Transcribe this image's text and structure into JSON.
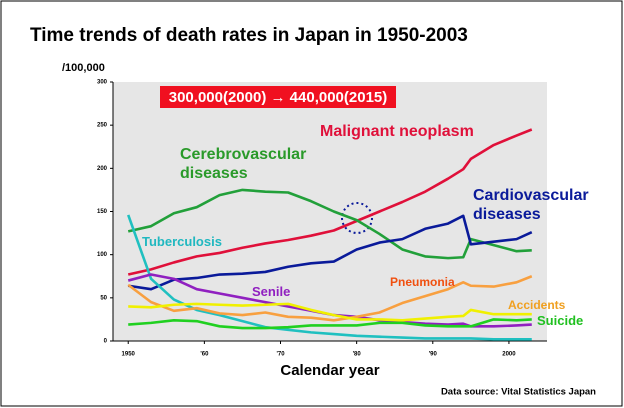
{
  "chart_data": {
    "type": "line",
    "title": "Time trends of death rates in Japan in 1950-2003",
    "ylabel": "/100,000",
    "xlabel": "Calendar year",
    "source": "Data source: Vital Statistics Japan",
    "annotation": "300,000(2000) → 440,000(2015)",
    "x": [
      1950,
      1953,
      1956,
      1959,
      1962,
      1965,
      1968,
      1971,
      1974,
      1977,
      1980,
      1983,
      1986,
      1989,
      1992,
      1994,
      1995,
      1998,
      2001,
      2003
    ],
    "xlim": [
      1948,
      2005
    ],
    "xticks": [
      1950,
      {
        "value": 1960,
        "label": "'60"
      },
      {
        "value": 1970,
        "label": "'70"
      },
      {
        "value": 1980,
        "label": "'80"
      },
      {
        "value": 1990,
        "label": "'90"
      },
      2000
    ],
    "ylim": [
      0,
      300
    ],
    "yticks": [
      0,
      50,
      100,
      150,
      200,
      250,
      300
    ],
    "series": [
      {
        "name": "Malignant neoplasm",
        "color": "#e0103a",
        "values": [
          77,
          83,
          91,
          98,
          102,
          108,
          113,
          117,
          122,
          128,
          139,
          150,
          161,
          173,
          188,
          199,
          211,
          227,
          238,
          245
        ]
      },
      {
        "name": "Cerebrovascular diseases",
        "color": "#22a03a",
        "values": [
          127,
          133,
          148,
          155,
          169,
          175,
          173,
          172,
          162,
          150,
          140,
          124,
          106,
          98,
          96,
          97,
          118,
          111,
          104,
          105
        ]
      },
      {
        "name": "Cardiovascular diseases",
        "color": "#0a1a9a",
        "values": [
          64,
          60,
          71,
          73,
          77,
          78,
          80,
          86,
          90,
          92,
          106,
          114,
          118,
          130,
          136,
          145,
          112,
          115,
          118,
          126
        ]
      },
      {
        "name": "Tuberculosis",
        "color": "#20c0c0",
        "values": [
          146,
          72,
          48,
          36,
          30,
          23,
          16,
          13,
          10,
          8,
          6,
          5,
          4,
          3,
          3,
          3,
          3,
          2,
          2,
          2
        ]
      },
      {
        "name": "Senile",
        "color": "#9020c0",
        "values": [
          70,
          77,
          72,
          60,
          55,
          50,
          45,
          40,
          35,
          30,
          28,
          24,
          22,
          20,
          19,
          20,
          17,
          17,
          18,
          19
        ]
      },
      {
        "name": "Pneumonia",
        "color": "#f8a040",
        "values": [
          65,
          45,
          35,
          38,
          32,
          30,
          33,
          28,
          27,
          24,
          28,
          33,
          44,
          52,
          60,
          68,
          64,
          63,
          68,
          75
        ]
      },
      {
        "name": "Accidents",
        "color": "#f0f000",
        "values": [
          40,
          39,
          42,
          43,
          42,
          41,
          42,
          43,
          36,
          30,
          25,
          25,
          24,
          26,
          28,
          29,
          36,
          31,
          31,
          31
        ]
      },
      {
        "name": "Suicide",
        "color": "#20d020",
        "values": [
          19,
          21,
          24,
          23,
          17,
          15,
          15,
          16,
          18,
          18,
          18,
          21,
          21,
          18,
          17,
          17,
          17,
          25,
          24,
          25
        ]
      }
    ]
  }
}
